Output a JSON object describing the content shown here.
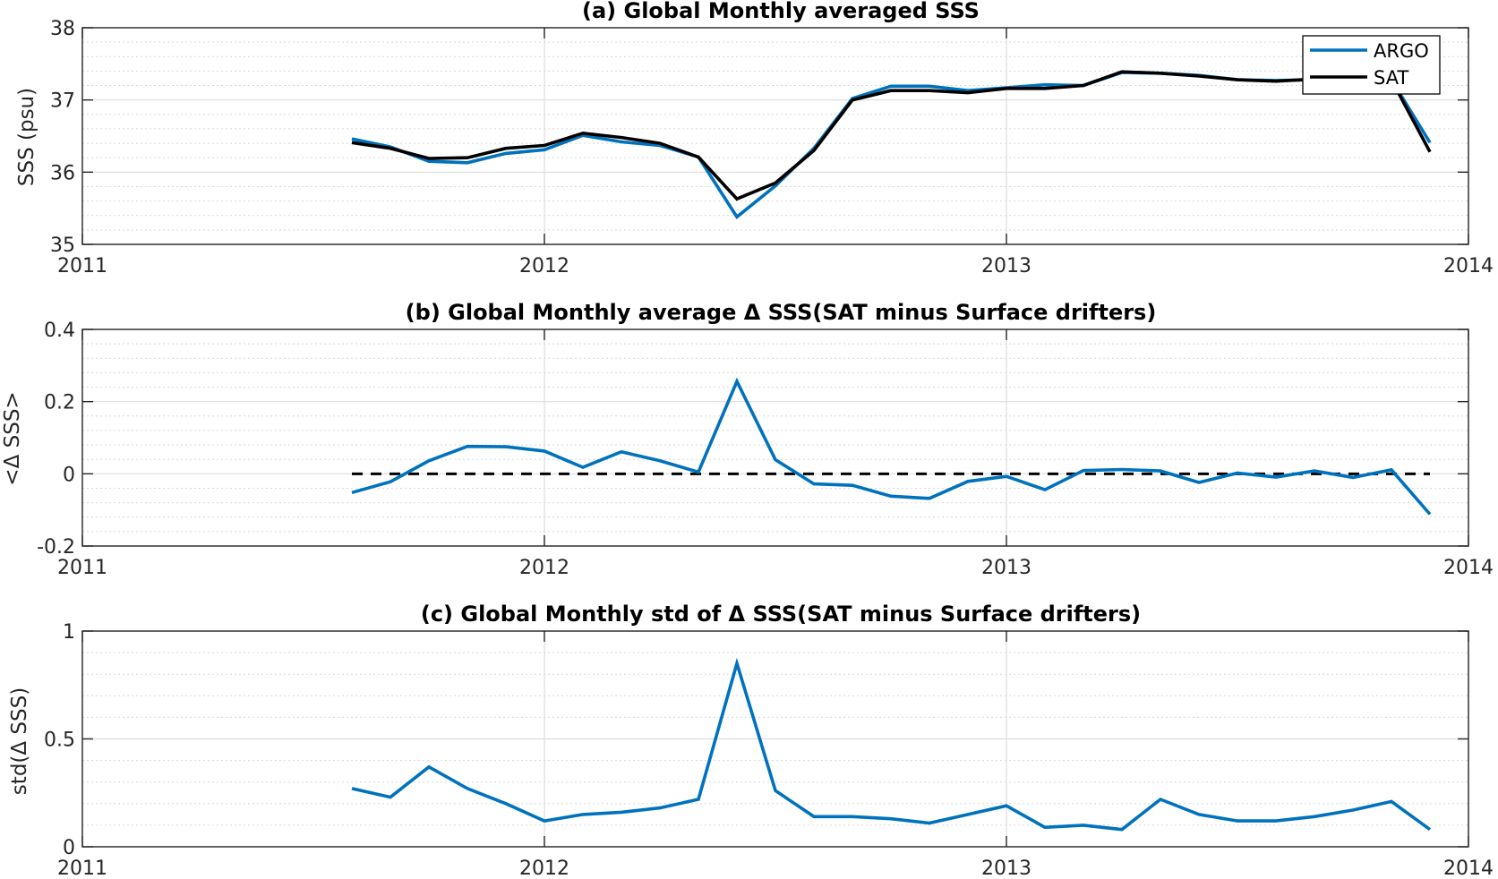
{
  "chart_data": [
    {
      "type": "line",
      "title": "(a) Global Monthly averaged SSS",
      "ylabel": "SSS (psu)",
      "xlim": [
        2011,
        2014
      ],
      "ylim": [
        35,
        38
      ],
      "xticks": [
        "2011",
        "2012",
        "2013",
        "2014"
      ],
      "yticks": [
        "35",
        "36",
        "37",
        "38"
      ],
      "grid": true,
      "legend_position": "top-right",
      "series": [
        {
          "name": "ARGO",
          "color": "#0072bd",
          "x": [
            "2011-08",
            "2011-09",
            "2011-10",
            "2011-11",
            "2011-12",
            "2012-01",
            "2012-02",
            "2012-03",
            "2012-04",
            "2012-05",
            "2012-06",
            "2012-07",
            "2012-08",
            "2012-09",
            "2012-10",
            "2012-11",
            "2012-12",
            "2013-01",
            "2013-02",
            "2013-03",
            "2013-04",
            "2013-05",
            "2013-06",
            "2013-07",
            "2013-08",
            "2013-09",
            "2013-10",
            "2013-11",
            "2013-12"
          ],
          "values": [
            36.46,
            36.35,
            36.15,
            36.13,
            36.26,
            36.31,
            36.51,
            36.42,
            36.37,
            36.21,
            35.38,
            35.81,
            36.33,
            37.02,
            37.19,
            37.19,
            37.13,
            37.17,
            37.21,
            37.2,
            37.38,
            37.37,
            37.34,
            37.28,
            37.27,
            37.28,
            37.3,
            37.28,
            36.41
          ]
        },
        {
          "name": "SAT",
          "color": "#000000",
          "x": [
            "2011-08",
            "2011-09",
            "2011-10",
            "2011-11",
            "2011-12",
            "2012-01",
            "2012-02",
            "2012-03",
            "2012-04",
            "2012-05",
            "2012-06",
            "2012-07",
            "2012-08",
            "2012-09",
            "2012-10",
            "2012-11",
            "2012-12",
            "2013-01",
            "2013-02",
            "2013-03",
            "2013-04",
            "2013-05",
            "2013-06",
            "2013-07",
            "2013-08",
            "2013-09",
            "2013-10",
            "2013-11",
            "2013-12"
          ],
          "values": [
            36.41,
            36.33,
            36.19,
            36.2,
            36.33,
            36.37,
            36.54,
            36.48,
            36.4,
            36.21,
            35.63,
            35.85,
            36.3,
            37.0,
            37.13,
            37.13,
            37.1,
            37.16,
            37.16,
            37.2,
            37.39,
            37.37,
            37.33,
            37.28,
            37.26,
            37.29,
            37.31,
            37.28,
            36.28
          ]
        }
      ]
    },
    {
      "type": "line",
      "title": "(b) Global Monthly average Δ SSS(SAT minus Surface drifters)",
      "ylabel": "<Δ SSS>",
      "xlim": [
        2011,
        2014
      ],
      "ylim": [
        -0.2,
        0.4
      ],
      "xticks": [
        "2011",
        "2012",
        "2013",
        "2014"
      ],
      "yticks": [
        "-0.2",
        "0",
        "0.2",
        "0.4"
      ],
      "grid": true,
      "reference_line": {
        "y": 0,
        "style": "dashed",
        "color": "#000000",
        "x_start": "2011-08",
        "x_end": "2013-12"
      },
      "series": [
        {
          "color": "#0072bd",
          "x": [
            "2011-08",
            "2011-09",
            "2011-10",
            "2011-11",
            "2011-12",
            "2012-01",
            "2012-02",
            "2012-03",
            "2012-04",
            "2012-05",
            "2012-06",
            "2012-07",
            "2012-08",
            "2012-09",
            "2012-10",
            "2012-11",
            "2012-12",
            "2013-01",
            "2013-02",
            "2013-03",
            "2013-04",
            "2013-05",
            "2013-06",
            "2013-07",
            "2013-08",
            "2013-09",
            "2013-10",
            "2013-11",
            "2013-12"
          ],
          "values": [
            -0.052,
            -0.022,
            0.036,
            0.076,
            0.075,
            0.063,
            0.018,
            0.061,
            0.036,
            0.005,
            0.256,
            0.039,
            -0.028,
            -0.032,
            -0.062,
            -0.068,
            -0.021,
            -0.007,
            -0.044,
            0.009,
            0.012,
            0.008,
            -0.024,
            0.002,
            -0.009,
            0.008,
            -0.01,
            0.011,
            -0.112
          ]
        }
      ]
    },
    {
      "type": "line",
      "title": "(c) Global Monthly std of Δ SSS(SAT minus Surface drifters)",
      "ylabel": "std(Δ SSS)",
      "xlim": [
        2011,
        2014
      ],
      "ylim": [
        0,
        1
      ],
      "xticks": [
        "2011",
        "2012",
        "2013",
        "2014"
      ],
      "yticks": [
        "0",
        "0.5",
        "1"
      ],
      "grid": true,
      "series": [
        {
          "color": "#0072bd",
          "x": [
            "2011-08",
            "2011-09",
            "2011-10",
            "2011-11",
            "2011-12",
            "2012-01",
            "2012-02",
            "2012-03",
            "2012-04",
            "2012-05",
            "2012-06",
            "2012-07",
            "2012-08",
            "2012-09",
            "2012-10",
            "2012-11",
            "2012-12",
            "2013-01",
            "2013-02",
            "2013-03",
            "2013-04",
            "2013-05",
            "2013-06",
            "2013-07",
            "2013-08",
            "2013-09",
            "2013-10",
            "2013-11",
            "2013-12"
          ],
          "values": [
            0.27,
            0.23,
            0.37,
            0.27,
            0.2,
            0.12,
            0.15,
            0.16,
            0.18,
            0.22,
            0.85,
            0.26,
            0.14,
            0.14,
            0.13,
            0.11,
            0.15,
            0.19,
            0.09,
            0.1,
            0.08,
            0.22,
            0.15,
            0.12,
            0.12,
            0.14,
            0.17,
            0.21,
            0.08
          ]
        }
      ]
    }
  ]
}
